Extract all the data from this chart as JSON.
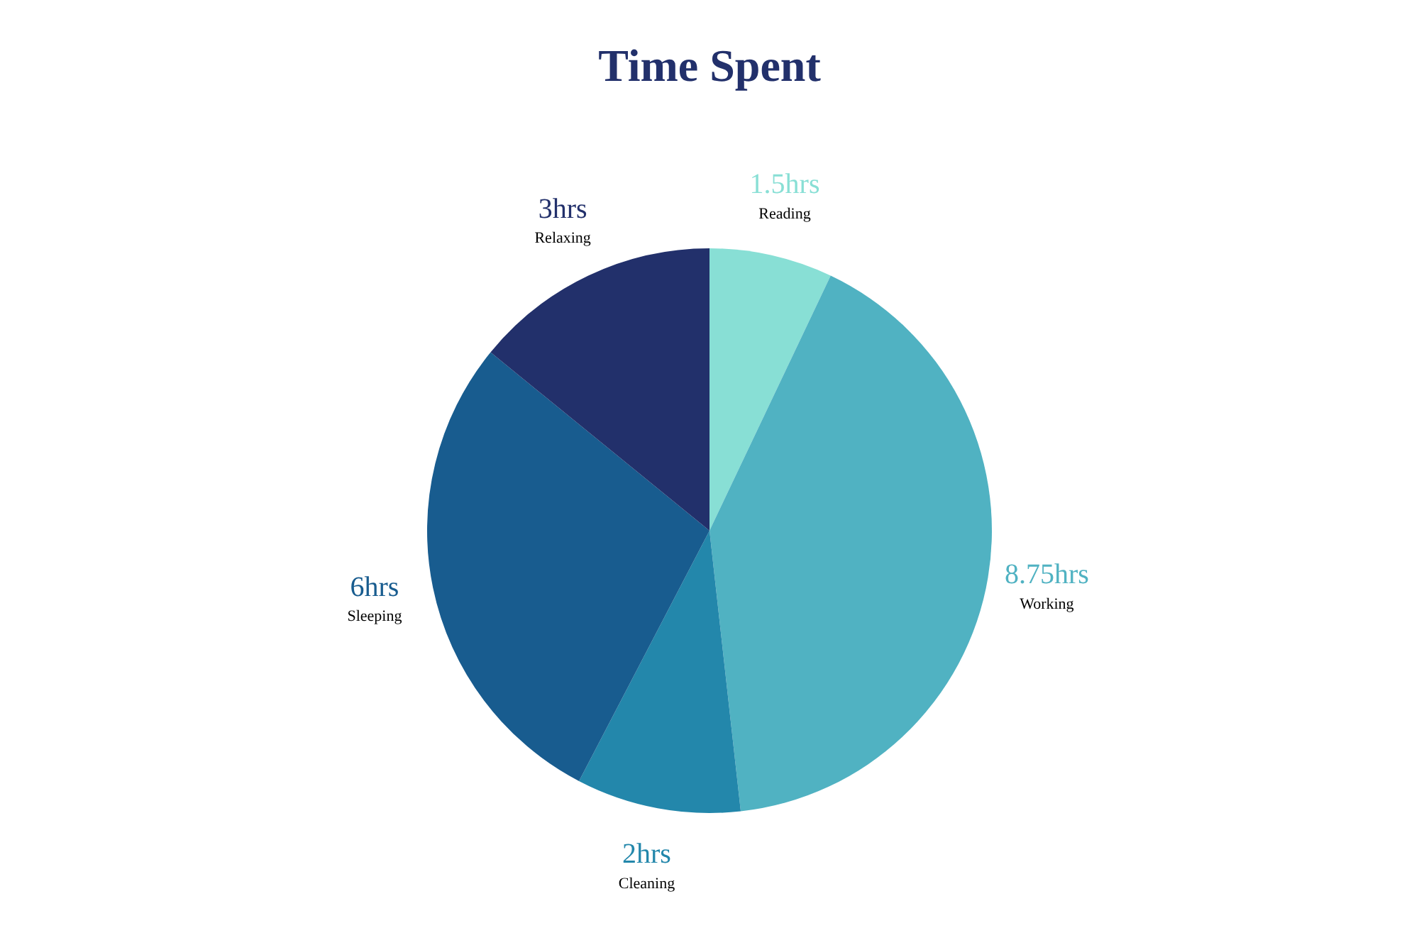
{
  "chart_data": {
    "type": "pie",
    "title": "Time Spent",
    "categories": [
      "Reading",
      "Working",
      "Cleaning",
      "Sleeping",
      "Relaxing"
    ],
    "values": [
      1.5,
      8.75,
      2,
      6,
      3
    ],
    "value_labels": [
      "1.5hrs",
      "8.75hrs",
      "2hrs",
      "6hrs",
      "3hrs"
    ],
    "colors": [
      "#88dfd5",
      "#50b2c2",
      "#2387ab",
      "#185c8f",
      "#22306b"
    ],
    "legend": false
  }
}
